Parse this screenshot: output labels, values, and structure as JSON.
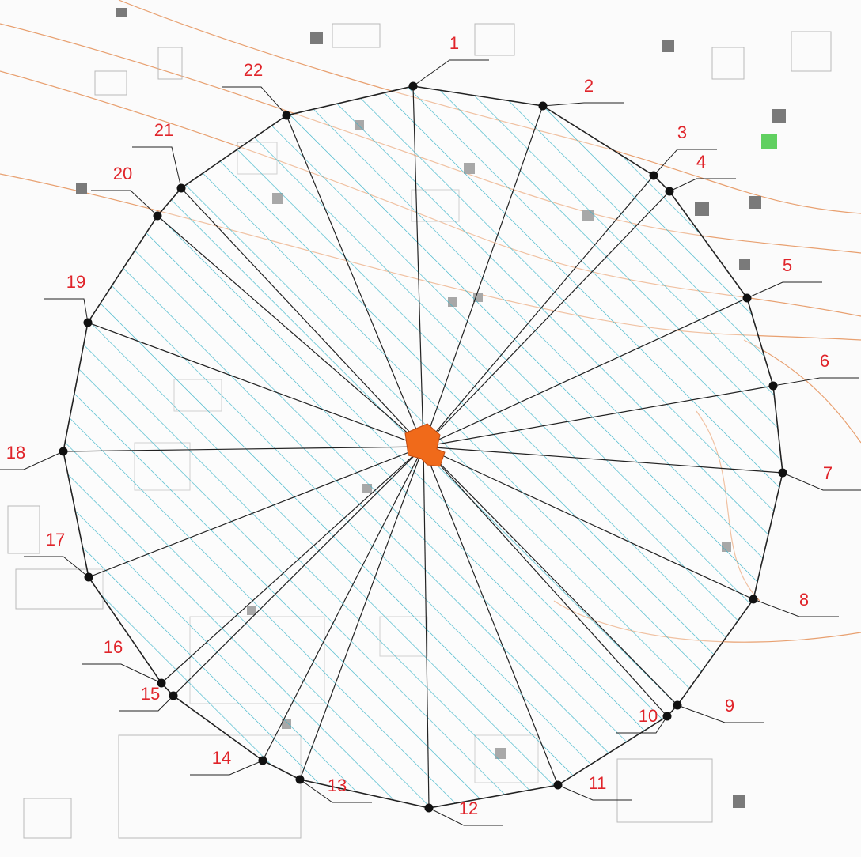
{
  "points": [
    "1",
    "2",
    "3",
    "4",
    "5",
    "6",
    "7",
    "8",
    "9",
    "10",
    "11",
    "12",
    "13",
    "14",
    "15",
    "16",
    "17",
    "18",
    "19",
    "20",
    "21",
    "22"
  ]
}
